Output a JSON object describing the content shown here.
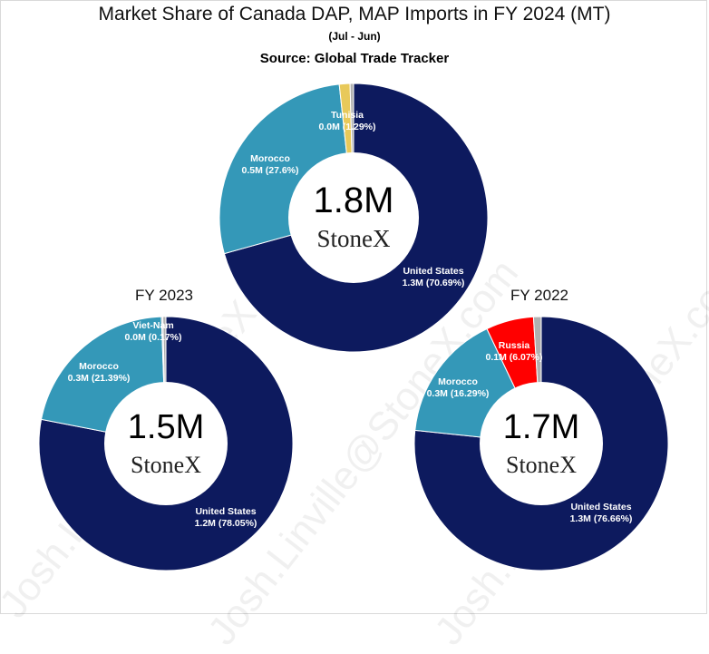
{
  "header": {
    "title": "Market Share of Canada DAP, MAP Imports in FY 2024 (MT)",
    "subtitle": "(Jul - Jun)",
    "source": "Source: Global Trade Tracker"
  },
  "watermark": "Josh.Linville@StoneX.com",
  "brand": "StoneX",
  "colors": {
    "United States": "#0d1a5e",
    "Morocco": "#3498b8",
    "Tunisia": "#e8c95a",
    "Viet-Nam": "#a6a6a6",
    "Russia": "#ff0000",
    "Other": "#b0b0b0"
  },
  "chart_data": [
    {
      "type": "pie",
      "title": "",
      "center_label": "1.8M",
      "slices": [
        {
          "name": "United States",
          "value_label": "1.3M (70.69%)",
          "percent": 70.69
        },
        {
          "name": "Morocco",
          "value_label": "0.5M (27.6%)",
          "percent": 27.6
        },
        {
          "name": "Tunisia",
          "value_label": "0.0M (1.29%)",
          "percent": 1.29
        },
        {
          "name": "Other",
          "value_label": "",
          "percent": 0.42
        }
      ]
    },
    {
      "type": "pie",
      "title": "FY 2023",
      "center_label": "1.5M",
      "slices": [
        {
          "name": "United States",
          "value_label": "1.2M (78.05%)",
          "percent": 78.05
        },
        {
          "name": "Morocco",
          "value_label": "0.3M (21.39%)",
          "percent": 21.39
        },
        {
          "name": "Viet-Nam",
          "value_label": "0.0M (0.17%)",
          "percent": 0.17
        },
        {
          "name": "Other",
          "value_label": "",
          "percent": 0.39
        }
      ]
    },
    {
      "type": "pie",
      "title": "FY 2022",
      "center_label": "1.7M",
      "slices": [
        {
          "name": "United States",
          "value_label": "1.3M (76.66%)",
          "percent": 76.66
        },
        {
          "name": "Morocco",
          "value_label": "0.3M (16.29%)",
          "percent": 16.29
        },
        {
          "name": "Russia",
          "value_label": "0.1M (6.07%)",
          "percent": 6.07
        },
        {
          "name": "Other",
          "value_label": "",
          "percent": 0.98
        }
      ]
    }
  ]
}
